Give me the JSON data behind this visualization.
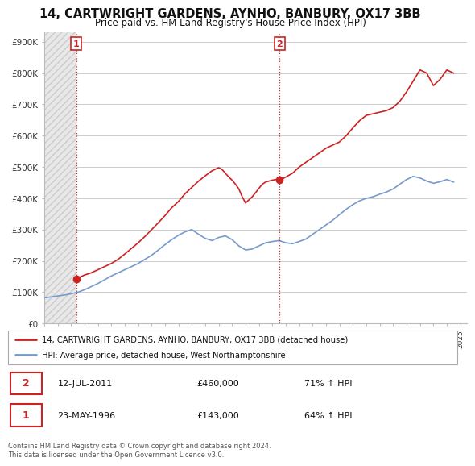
{
  "title": "14, CARTWRIGHT GARDENS, AYNHO, BANBURY, OX17 3BB",
  "subtitle": "Price paid vs. HM Land Registry's House Price Index (HPI)",
  "legend_line1": "14, CARTWRIGHT GARDENS, AYNHO, BANBURY, OX17 3BB (detached house)",
  "legend_line2": "HPI: Average price, detached house, West Northamptonshire",
  "sale1_date": "23-MAY-1996",
  "sale1_price": "£143,000",
  "sale1_hpi": "64% ↑ HPI",
  "sale1_year": 1996.38,
  "sale1_value": 143000,
  "sale2_date": "12-JUL-2011",
  "sale2_price": "£460,000",
  "sale2_hpi": "71% ↑ HPI",
  "sale2_year": 2011.53,
  "sale2_value": 460000,
  "ylim": [
    0,
    930000
  ],
  "xlim_start": 1994,
  "xlim_end": 2025.5,
  "hatch_end_year": 1996.38,
  "line_color_red": "#cc2222",
  "line_color_blue": "#7799cc",
  "marker_color_red": "#cc2222",
  "background_color": "#ffffff",
  "grid_color": "#cccccc",
  "hatch_bg_color": "#e8e8e8",
  "footer": "Contains HM Land Registry data © Crown copyright and database right 2024.\nThis data is licensed under the Open Government Licence v3.0.",
  "red_years": [
    1996.38,
    1997.0,
    1997.5,
    1998.0,
    1998.5,
    1999.0,
    1999.5,
    2000.0,
    2000.5,
    2001.0,
    2001.5,
    2002.0,
    2002.5,
    2003.0,
    2003.5,
    2004.0,
    2004.5,
    2005.0,
    2005.5,
    2006.0,
    2006.5,
    2007.0,
    2007.25,
    2007.5,
    2007.75,
    2008.0,
    2008.25,
    2008.5,
    2008.75,
    2009.0,
    2009.25,
    2009.5,
    2009.75,
    2010.0,
    2010.25,
    2010.5,
    2010.75,
    2011.0,
    2011.25,
    2011.53,
    2011.75,
    2012.0,
    2012.5,
    2013.0,
    2013.5,
    2014.0,
    2014.5,
    2015.0,
    2015.5,
    2016.0,
    2016.5,
    2017.0,
    2017.5,
    2018.0,
    2018.5,
    2019.0,
    2019.5,
    2020.0,
    2020.5,
    2021.0,
    2021.5,
    2022.0,
    2022.5,
    2023.0,
    2023.5,
    2024.0,
    2024.5
  ],
  "red_values": [
    143000,
    155000,
    162000,
    172000,
    182000,
    192000,
    205000,
    222000,
    240000,
    258000,
    278000,
    300000,
    322000,
    345000,
    370000,
    390000,
    415000,
    435000,
    455000,
    472000,
    488000,
    498000,
    492000,
    480000,
    468000,
    458000,
    445000,
    430000,
    405000,
    385000,
    395000,
    405000,
    418000,
    432000,
    445000,
    452000,
    455000,
    458000,
    460000,
    460000,
    462000,
    468000,
    480000,
    500000,
    515000,
    530000,
    545000,
    560000,
    570000,
    580000,
    600000,
    625000,
    648000,
    665000,
    670000,
    675000,
    680000,
    690000,
    710000,
    740000,
    775000,
    810000,
    800000,
    760000,
    780000,
    810000,
    800000
  ],
  "blue_years": [
    1994.0,
    1994.5,
    1995.0,
    1995.5,
    1996.0,
    1996.5,
    1997.0,
    1997.5,
    1998.0,
    1998.5,
    1999.0,
    1999.5,
    2000.0,
    2000.5,
    2001.0,
    2001.5,
    2002.0,
    2002.5,
    2003.0,
    2003.5,
    2004.0,
    2004.5,
    2005.0,
    2005.5,
    2006.0,
    2006.5,
    2007.0,
    2007.5,
    2008.0,
    2008.5,
    2009.0,
    2009.5,
    2010.0,
    2010.5,
    2011.0,
    2011.5,
    2012.0,
    2012.5,
    2013.0,
    2013.5,
    2014.0,
    2014.5,
    2015.0,
    2015.5,
    2016.0,
    2016.5,
    2017.0,
    2017.5,
    2018.0,
    2018.5,
    2019.0,
    2019.5,
    2020.0,
    2020.5,
    2021.0,
    2021.5,
    2022.0,
    2022.5,
    2023.0,
    2023.5,
    2024.0,
    2024.5
  ],
  "blue_values": [
    82000,
    85000,
    88000,
    91000,
    95000,
    100000,
    108000,
    118000,
    128000,
    140000,
    152000,
    162000,
    172000,
    182000,
    192000,
    205000,
    218000,
    235000,
    252000,
    268000,
    282000,
    293000,
    300000,
    285000,
    272000,
    265000,
    275000,
    280000,
    268000,
    248000,
    235000,
    238000,
    248000,
    258000,
    262000,
    265000,
    258000,
    255000,
    262000,
    270000,
    285000,
    300000,
    315000,
    330000,
    348000,
    365000,
    380000,
    392000,
    400000,
    405000,
    413000,
    420000,
    430000,
    445000,
    460000,
    470000,
    465000,
    455000,
    448000,
    453000,
    460000,
    452000
  ]
}
